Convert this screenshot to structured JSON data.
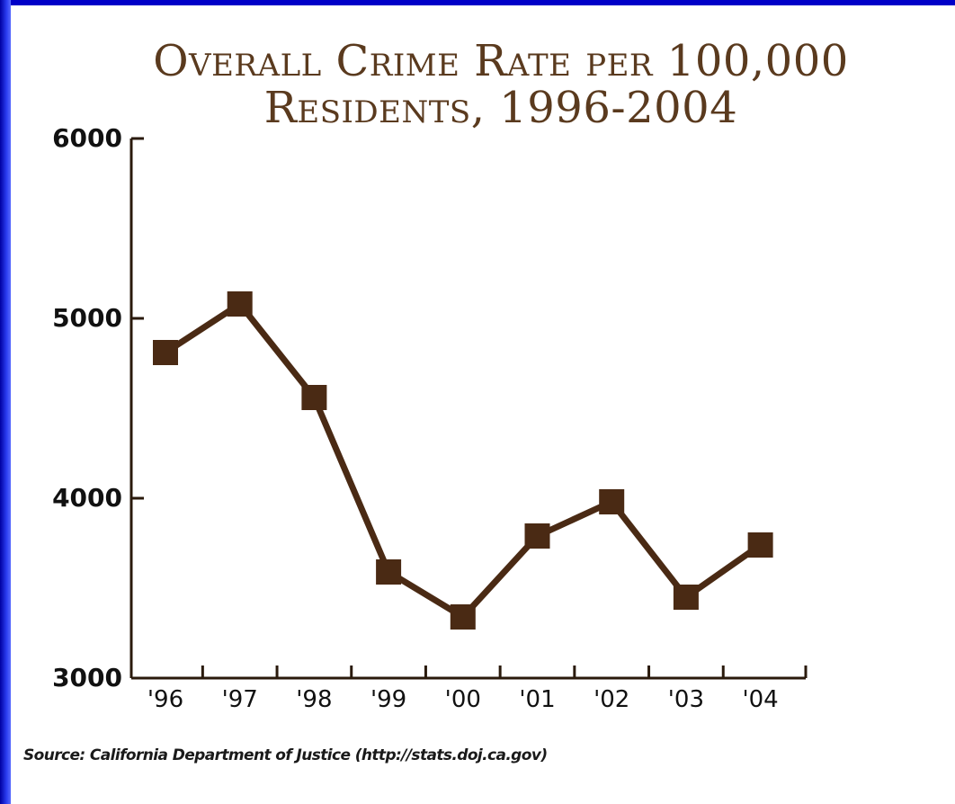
{
  "chart_data": {
    "type": "line",
    "title_lines": [
      "Overall Crime Rate per 100,000",
      "Residents, 1996-2004"
    ],
    "categories": [
      "'96",
      "'97",
      "'98",
      "'99",
      "'00",
      "'01",
      "'02",
      "'03",
      "'04"
    ],
    "values": [
      4810,
      5080,
      4560,
      3590,
      3340,
      3790,
      3980,
      3450,
      3740
    ],
    "yticks": [
      3000,
      4000,
      5000,
      6000
    ],
    "ylim": [
      3000,
      6000
    ],
    "xlabel": "",
    "ylabel": "",
    "grid": false,
    "line_color": "#4a2a14",
    "marker": "square"
  },
  "source": "Source: California Department of Justice (http://stats.doj.ca.gov)"
}
